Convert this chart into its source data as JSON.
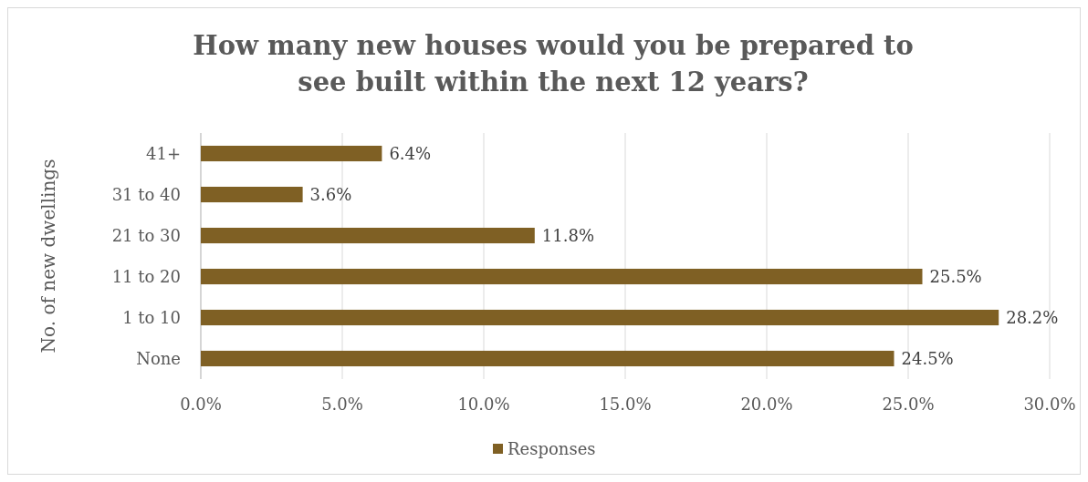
{
  "chart_data": {
    "type": "bar",
    "orientation": "horizontal",
    "title": "How many new houses would you be prepared to\nsee built within the next 12 years?",
    "ylabel": "No. of new dwellings",
    "categories": [
      "41+",
      "31 to 40",
      "21 to 30",
      "11 to 20",
      "1 to 10",
      "None"
    ],
    "series": [
      {
        "name": "Responses",
        "color": "#7f6024",
        "values": [
          6.4,
          3.6,
          11.8,
          25.5,
          28.2,
          24.5
        ],
        "value_labels": [
          "6.4%",
          "3.6%",
          "11.8%",
          "25.5%",
          "28.2%",
          "24.5%"
        ]
      }
    ],
    "xlim": [
      0,
      30
    ],
    "xticks": [
      {
        "value": 0,
        "label": "0.0%"
      },
      {
        "value": 5,
        "label": "5.0%"
      },
      {
        "value": 10,
        "label": "10.0%"
      },
      {
        "value": 15,
        "label": "15.0%"
      },
      {
        "value": 20,
        "label": "20.0%"
      },
      {
        "value": 25,
        "label": "25.0%"
      },
      {
        "value": 30,
        "label": "30.0%"
      }
    ],
    "grid": "x",
    "legend": "bottom"
  }
}
